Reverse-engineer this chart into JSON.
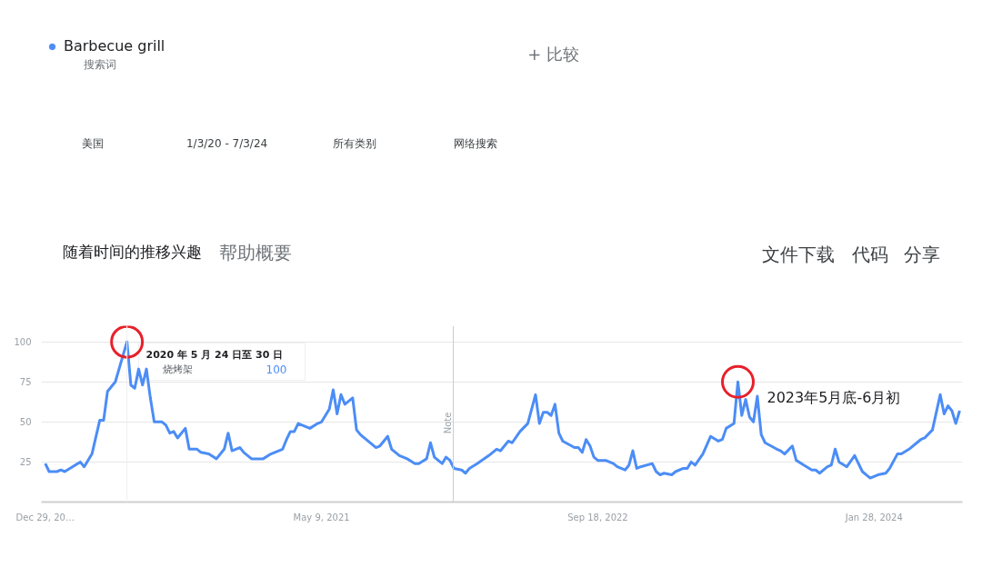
{
  "chart_data": {
    "type": "line",
    "title": "随着时间的推移兴趣",
    "subtitle": "帮助概要",
    "x": [
      "2019-12-29",
      "2020-01-05",
      "2020-01-19",
      "2020-01-26",
      "2020-02-02",
      "2020-02-16",
      "2020-03-01",
      "2020-03-08",
      "2020-03-22",
      "2020-04-05",
      "2020-04-12",
      "2020-04-19",
      "2020-05-03",
      "2020-05-24",
      "2020-05-31",
      "2020-06-07",
      "2020-06-14",
      "2020-06-21",
      "2020-06-28",
      "2020-07-05",
      "2020-07-12",
      "2020-07-26",
      "2020-08-02",
      "2020-08-09",
      "2020-08-16",
      "2020-08-23",
      "2020-09-06",
      "2020-09-13",
      "2020-09-27",
      "2020-10-04",
      "2020-10-18",
      "2020-11-01",
      "2020-11-15",
      "2020-11-22",
      "2020-11-29",
      "2020-12-06",
      "2020-12-13",
      "2020-12-20",
      "2021-01-03",
      "2021-01-24",
      "2021-02-07",
      "2021-02-28",
      "2021-03-07",
      "2021-03-14",
      "2021-03-21",
      "2021-03-28",
      "2021-04-18",
      "2021-05-02",
      "2021-05-09",
      "2021-05-23",
      "2021-05-30",
      "2021-06-06",
      "2021-06-13",
      "2021-06-20",
      "2021-07-04",
      "2021-07-11",
      "2021-07-18",
      "2021-08-15",
      "2021-08-22",
      "2021-09-05",
      "2021-09-12",
      "2021-09-26",
      "2021-10-10",
      "2021-10-24",
      "2021-10-31",
      "2021-11-14",
      "2021-11-21",
      "2021-11-28",
      "2021-12-12",
      "2021-12-19",
      "2021-12-26",
      "2022-01-02",
      "2022-01-16",
      "2022-01-23",
      "2022-01-30",
      "2022-02-13",
      "2022-03-06",
      "2022-03-20",
      "2022-03-27",
      "2022-04-10",
      "2022-04-17",
      "2022-05-01",
      "2022-05-15",
      "2022-05-29",
      "2022-06-05",
      "2022-06-12",
      "2022-06-19",
      "2022-06-26",
      "2022-07-03",
      "2022-07-10",
      "2022-07-17",
      "2022-08-07",
      "2022-08-14",
      "2022-08-21",
      "2022-08-28",
      "2022-09-04",
      "2022-09-11",
      "2022-09-18",
      "2022-10-02",
      "2022-10-16",
      "2022-10-23",
      "2022-11-06",
      "2022-11-13",
      "2022-11-20",
      "2022-11-27",
      "2022-12-04",
      "2022-12-25",
      "2023-01-01",
      "2023-01-08",
      "2023-01-15",
      "2023-01-29",
      "2023-02-05",
      "2023-02-19",
      "2023-02-26",
      "2023-03-05",
      "2023-03-12",
      "2023-03-26",
      "2023-04-09",
      "2023-04-23",
      "2023-04-30",
      "2023-05-07",
      "2023-05-21",
      "2023-05-28",
      "2023-06-04",
      "2023-06-11",
      "2023-06-18",
      "2023-06-25",
      "2023-07-02",
      "2023-07-09",
      "2023-07-16",
      "2023-08-06",
      "2023-08-13",
      "2023-08-20",
      "2023-09-03",
      "2023-09-10",
      "2023-09-24",
      "2023-10-08",
      "2023-10-15",
      "2023-10-22",
      "2023-11-05",
      "2023-11-12",
      "2023-11-19",
      "2023-11-26",
      "2023-12-10",
      "2023-12-24",
      "2024-01-07",
      "2024-01-21",
      "2024-02-04",
      "2024-02-18",
      "2024-02-25",
      "2024-03-10",
      "2024-03-17",
      "2024-03-31",
      "2024-04-14",
      "2024-04-21",
      "2024-04-28",
      "2024-05-12",
      "2024-05-26",
      "2024-06-02",
      "2024-06-09",
      "2024-06-16",
      "2024-06-23",
      "2024-06-30"
    ],
    "series": [
      {
        "name": "Barbecue grill",
        "color": "#4c8df6",
        "values": [
          24,
          19,
          19,
          20,
          19,
          22,
          25,
          22,
          30,
          51,
          51,
          69,
          75,
          100,
          73,
          71,
          83,
          73,
          83,
          65,
          50,
          50,
          48,
          43,
          44,
          40,
          46,
          33,
          33,
          31,
          30,
          27,
          33,
          43,
          32,
          33,
          34,
          31,
          27,
          27,
          30,
          33,
          39,
          44,
          44,
          49,
          46,
          49,
          50,
          58,
          70,
          55,
          67,
          61,
          65,
          45,
          42,
          34,
          35,
          41,
          33,
          29,
          27,
          24,
          24,
          27,
          37,
          28,
          24,
          28,
          26,
          21,
          20,
          18,
          21,
          24,
          29,
          33,
          32,
          38,
          37,
          44,
          49,
          67,
          49,
          56,
          56,
          54,
          61,
          43,
          38,
          34,
          34,
          31,
          39,
          35,
          28,
          26,
          26,
          24,
          22,
          20,
          23,
          32,
          21,
          22,
          24,
          19,
          17,
          18,
          17,
          19,
          21,
          21,
          25,
          23,
          30,
          41,
          38,
          39,
          46,
          49,
          75,
          54,
          64,
          53,
          50,
          66,
          42,
          37,
          33,
          32,
          30,
          35,
          26,
          23,
          20,
          20,
          18,
          22,
          23,
          33,
          25,
          22,
          29,
          19,
          15,
          17,
          18,
          21,
          30,
          30,
          33,
          37,
          39,
          40,
          45,
          67,
          55,
          60,
          57,
          49,
          57
        ]
      }
    ],
    "xlim": [
      "2019-12-22",
      "2024-07-05"
    ],
    "xticks": [
      {
        "value": "2019-12-29",
        "label": "Dec 29, 20…"
      },
      {
        "value": "2021-05-09",
        "label": "May 9, 2021"
      },
      {
        "value": "2022-09-18",
        "label": "Sep 18, 2022"
      },
      {
        "value": "2024-01-28",
        "label": "Jan 28, 2024"
      }
    ],
    "ylim": [
      0,
      110
    ],
    "yticks": [
      25,
      50,
      75,
      100
    ],
    "grid": "y",
    "legend": "top left",
    "marker": "none",
    "line_style": "solid",
    "ref_lines": [
      {
        "axis": "x",
        "value": "2022-01-01",
        "label": "Note",
        "color": "#cccccc"
      },
      {
        "axis": "x",
        "value": "2020-05-24",
        "color": "#eeeeee"
      }
    ],
    "annotations": [
      {
        "text": "2020 年 5 月 24 日至 30 日",
        "x": "2020-05-24",
        "y": 100
      },
      "烧烤架",
      "100",
      {
        "text": "2023年5月底-6月初",
        "x": "2023-05-28",
        "y": 75
      },
      "搜索词",
      "+ 比较",
      "美国",
      "1/3/20 - 7/3/24",
      "所有类别",
      "网络搜索",
      "文件下载",
      "代码",
      "分享"
    ]
  }
}
